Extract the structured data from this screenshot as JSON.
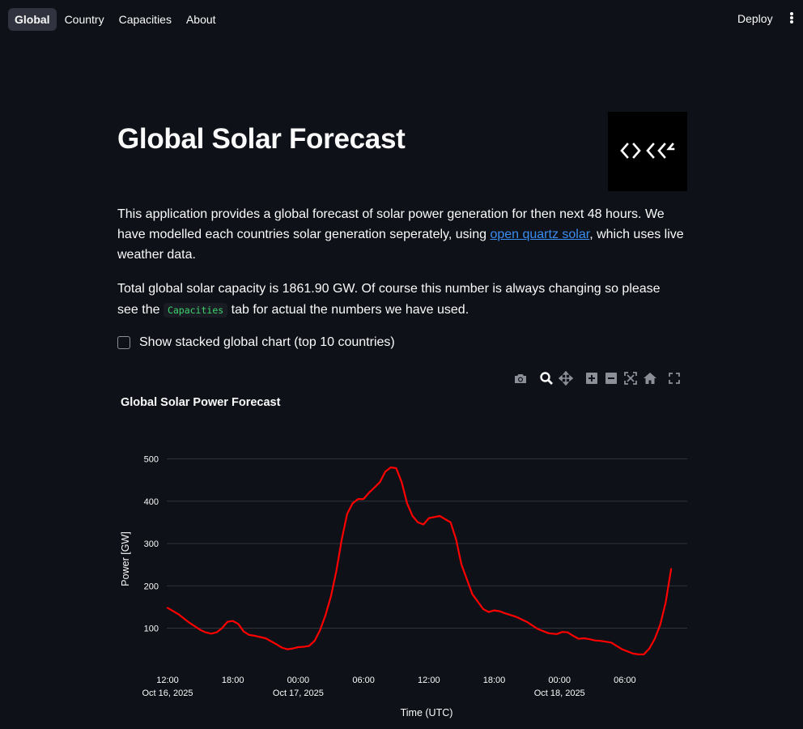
{
  "nav": {
    "tabs": [
      {
        "label": "Global",
        "active": true
      },
      {
        "label": "Country",
        "active": false
      },
      {
        "label": "Capacities",
        "active": false
      },
      {
        "label": "About",
        "active": false
      }
    ],
    "deploy_label": "Deploy",
    "menu_icon": "more-vertical-icon"
  },
  "header": {
    "title": "Global Solar Forecast",
    "logo_icon": "open-climate-fix-logo"
  },
  "intro": {
    "text_before_link": "This application provides a global forecast of solar power generation for then next 48 hours. We have modelled each countries solar generation seperately, using ",
    "link_text": "open quartz solar",
    "text_after_link": ", which uses live weather data."
  },
  "capacity": {
    "text_before": "Total global solar capacity is 1861.90 GW. Of course this number is always changing so please see the ",
    "chip": "Capacities",
    "text_after": " tab for actual the numbers we have used."
  },
  "stacked_toggle": {
    "label": "Show stacked global chart (top 10 countries)",
    "checked": false
  },
  "modebar": {
    "icons": [
      "camera-icon",
      "zoom-icon",
      "pan-icon",
      "zoom-in-icon",
      "zoom-out-icon",
      "autoscale-icon",
      "reset-axes-icon",
      "fullscreen-icon"
    ]
  },
  "colors": {
    "background": "#0e1117",
    "series": "#ff0000",
    "link": "#3b8ef0",
    "chip_text": "#3dd56d",
    "grid": "#31333f"
  },
  "chart_data": {
    "type": "line",
    "title": "Global Solar Power Forecast",
    "xlabel": "Time (UTC)",
    "ylabel": "Power [GW]",
    "ylim": [
      0,
      520
    ],
    "yticks": [
      100,
      200,
      300,
      400,
      500
    ],
    "xlim": [
      "2025-10-16 12:00",
      "2025-10-18 10:15"
    ],
    "xticks": [
      {
        "x": "2025-10-16 12:00",
        "label": "12:00",
        "sublabel": "Oct 16, 2025"
      },
      {
        "x": "2025-10-16 18:00",
        "label": "18:00",
        "sublabel": ""
      },
      {
        "x": "2025-10-17 00:00",
        "label": "00:00",
        "sublabel": "Oct 17, 2025"
      },
      {
        "x": "2025-10-17 06:00",
        "label": "06:00",
        "sublabel": ""
      },
      {
        "x": "2025-10-17 12:00",
        "label": "12:00",
        "sublabel": ""
      },
      {
        "x": "2025-10-17 18:00",
        "label": "18:00",
        "sublabel": ""
      },
      {
        "x": "2025-10-18 00:00",
        "label": "00:00",
        "sublabel": "Oct 18, 2025"
      },
      {
        "x": "2025-10-18 06:00",
        "label": "06:00",
        "sublabel": ""
      }
    ],
    "grid": true,
    "legend": "none",
    "series": [
      {
        "x": [
          "2025-10-16 12:00",
          "2025-10-16 13:00",
          "2025-10-16 14:00",
          "2025-10-16 15:00",
          "2025-10-16 15:30",
          "2025-10-16 16:00",
          "2025-10-16 16:30",
          "2025-10-16 17:00",
          "2025-10-16 17:30",
          "2025-10-16 18:00",
          "2025-10-16 18:30",
          "2025-10-16 19:00",
          "2025-10-16 19:30",
          "2025-10-16 20:00",
          "2025-10-16 21:00",
          "2025-10-16 22:00",
          "2025-10-16 22:30",
          "2025-10-16 23:00",
          "2025-10-16 23:30",
          "2025-10-17 00:00",
          "2025-10-17 00:30",
          "2025-10-17 01:00",
          "2025-10-17 01:30",
          "2025-10-17 02:00",
          "2025-10-17 02:30",
          "2025-10-17 03:00",
          "2025-10-17 03:30",
          "2025-10-17 04:00",
          "2025-10-17 04:30",
          "2025-10-17 05:00",
          "2025-10-17 05:30",
          "2025-10-17 06:00",
          "2025-10-17 06:30",
          "2025-10-17 07:00",
          "2025-10-17 07:30",
          "2025-10-17 08:00",
          "2025-10-17 08:30",
          "2025-10-17 09:00",
          "2025-10-17 09:30",
          "2025-10-17 10:00",
          "2025-10-17 10:30",
          "2025-10-17 11:00",
          "2025-10-17 11:30",
          "2025-10-17 12:00",
          "2025-10-17 13:00",
          "2025-10-17 14:00",
          "2025-10-17 14:30",
          "2025-10-17 15:00",
          "2025-10-17 16:00",
          "2025-10-17 17:00",
          "2025-10-17 17:30",
          "2025-10-17 18:00",
          "2025-10-17 18:30",
          "2025-10-17 19:00",
          "2025-10-17 20:00",
          "2025-10-17 21:00",
          "2025-10-17 22:00",
          "2025-10-17 23:00",
          "2025-10-17 23:45",
          "2025-10-18 00:15",
          "2025-10-18 00:45",
          "2025-10-18 01:15",
          "2025-10-18 01:45",
          "2025-10-18 02:15",
          "2025-10-18 02:45",
          "2025-10-18 03:15",
          "2025-10-18 03:45",
          "2025-10-18 04:15",
          "2025-10-18 04:45",
          "2025-10-18 05:15",
          "2025-10-18 05:45",
          "2025-10-18 06:15",
          "2025-10-18 06:45",
          "2025-10-18 07:15",
          "2025-10-18 07:45",
          "2025-10-18 08:15",
          "2025-10-18 08:45",
          "2025-10-18 09:15",
          "2025-10-18 09:45",
          "2025-10-18 10:15"
        ],
        "y": [
          148,
          133,
          113,
          96,
          90,
          87,
          90,
          100,
          115,
          117,
          110,
          92,
          84,
          82,
          76,
          62,
          54,
          50,
          52,
          55,
          56,
          58,
          70,
          95,
          130,
          175,
          235,
          310,
          370,
          395,
          405,
          405,
          420,
          432,
          445,
          470,
          480,
          478,
          445,
          395,
          365,
          350,
          345,
          360,
          365,
          350,
          310,
          250,
          180,
          145,
          138,
          142,
          140,
          135,
          127,
          115,
          98,
          88,
          86,
          91,
          90,
          82,
          75,
          76,
          74,
          71,
          70,
          68,
          66,
          58,
          50,
          45,
          40,
          38,
          38,
          52,
          75,
          108,
          160,
          240
        ]
      }
    ]
  }
}
